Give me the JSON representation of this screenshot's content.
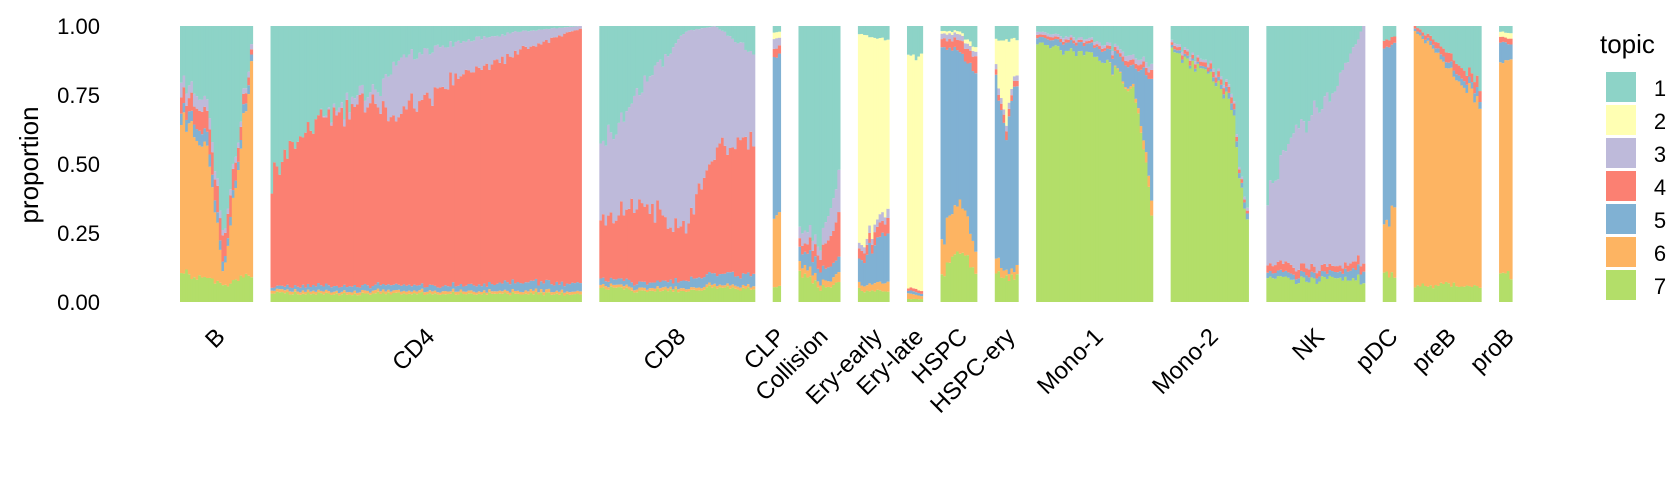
{
  "chart_data": {
    "type": "bar",
    "subtype": "stacked-proportion-structure-plot",
    "ylabel": "proportion",
    "xlabel": "",
    "ylim": [
      0,
      1
    ],
    "y_ticks": [
      "0.00",
      "0.25",
      "0.50",
      "0.75",
      "1.00"
    ],
    "grid": false,
    "legend": {
      "title": "topic",
      "placement": "right",
      "entries": [
        "1",
        "2",
        "3",
        "4",
        "5",
        "6",
        "7"
      ]
    },
    "topic_colors": {
      "1": "#8dd3c7",
      "2": "#ffffb3",
      "3": "#bebada",
      "4": "#fb8072",
      "5": "#80b1d3",
      "6": "#fdb462",
      "7": "#b3de69"
    },
    "stack_order": [
      "7",
      "6",
      "5",
      "4",
      "3",
      "2",
      "1"
    ],
    "groups": [
      {
        "name": "B",
        "n_samples": 28,
        "profile": [
          {
            "t": 0.0,
            "m": {
              "1": 0.2,
              "3": 0.05,
              "4": 0.05,
              "5": 0.04,
              "6": 0.56,
              "7": 0.1
            }
          },
          {
            "t": 0.4,
            "m": {
              "1": 0.3,
              "3": 0.04,
              "4": 0.08,
              "5": 0.05,
              "6": 0.45,
              "7": 0.08
            }
          },
          {
            "t": 0.6,
            "m": {
              "1": 0.75,
              "3": 0.02,
              "4": 0.1,
              "5": 0.03,
              "6": 0.04,
              "7": 0.06
            }
          },
          {
            "t": 1.0,
            "m": {
              "1": 0.08,
              "3": 0.02,
              "4": 0.02,
              "5": 0.03,
              "6": 0.75,
              "7": 0.1
            }
          }
        ]
      },
      {
        "name": "CD4",
        "n_samples": 120,
        "profile": [
          {
            "t": 0.0,
            "m": {
              "1": 0.55,
              "3": 0.0,
              "4": 0.4,
              "5": 0.01,
              "6": 0.01,
              "7": 0.03
            }
          },
          {
            "t": 0.15,
            "m": {
              "1": 0.33,
              "3": 0.0,
              "4": 0.61,
              "5": 0.02,
              "6": 0.01,
              "7": 0.03
            }
          },
          {
            "t": 0.35,
            "m": {
              "1": 0.22,
              "3": 0.05,
              "4": 0.67,
              "5": 0.02,
              "6": 0.01,
              "7": 0.03
            }
          },
          {
            "t": 0.4,
            "m": {
              "1": 0.12,
              "3": 0.2,
              "4": 0.62,
              "5": 0.02,
              "6": 0.01,
              "7": 0.03
            }
          },
          {
            "t": 0.6,
            "m": {
              "1": 0.06,
              "3": 0.13,
              "4": 0.75,
              "5": 0.02,
              "6": 0.01,
              "7": 0.03
            }
          },
          {
            "t": 0.8,
            "m": {
              "1": 0.02,
              "3": 0.07,
              "4": 0.84,
              "5": 0.03,
              "6": 0.01,
              "7": 0.03
            }
          },
          {
            "t": 1.0,
            "m": {
              "1": 0.0,
              "3": 0.01,
              "4": 0.92,
              "5": 0.03,
              "6": 0.01,
              "7": 0.03
            }
          }
        ]
      },
      {
        "name": "CD8",
        "n_samples": 60,
        "profile": [
          {
            "t": 0.0,
            "m": {
              "1": 0.45,
              "3": 0.25,
              "4": 0.22,
              "5": 0.02,
              "6": 0.01,
              "7": 0.05
            }
          },
          {
            "t": 0.3,
            "m": {
              "1": 0.2,
              "3": 0.45,
              "4": 0.28,
              "5": 0.02,
              "6": 0.01,
              "7": 0.04
            }
          },
          {
            "t": 0.55,
            "m": {
              "1": 0.02,
              "3": 0.72,
              "4": 0.18,
              "5": 0.03,
              "6": 0.01,
              "7": 0.04
            }
          },
          {
            "t": 0.75,
            "m": {
              "1": 0.0,
              "3": 0.45,
              "4": 0.45,
              "5": 0.04,
              "6": 0.01,
              "7": 0.05
            }
          },
          {
            "t": 1.0,
            "m": {
              "1": 0.1,
              "3": 0.3,
              "4": 0.5,
              "5": 0.04,
              "6": 0.01,
              "7": 0.05
            }
          }
        ]
      },
      {
        "name": "CLP",
        "n_samples": 3,
        "profile": [
          {
            "t": 0.0,
            "m": {
              "1": 0.02,
              "2": 0.02,
              "3": 0.03,
              "4": 0.03,
              "5": 0.6,
              "6": 0.25,
              "7": 0.05
            }
          },
          {
            "t": 1.0,
            "m": {
              "1": 0.02,
              "2": 0.02,
              "3": 0.03,
              "4": 0.03,
              "5": 0.6,
              "6": 0.25,
              "7": 0.05
            }
          }
        ]
      },
      {
        "name": "Collision",
        "n_samples": 16,
        "profile": [
          {
            "t": 0.0,
            "m": {
              "1": 0.7,
              "3": 0.05,
              "4": 0.03,
              "5": 0.06,
              "6": 0.04,
              "7": 0.12
            }
          },
          {
            "t": 0.5,
            "m": {
              "1": 0.8,
              "3": 0.03,
              "4": 0.05,
              "5": 0.05,
              "6": 0.02,
              "7": 0.05
            }
          },
          {
            "t": 1.0,
            "m": {
              "1": 0.55,
              "3": 0.15,
              "4": 0.15,
              "5": 0.05,
              "6": 0.03,
              "7": 0.07
            }
          }
        ]
      },
      {
        "name": "Ery-early",
        "n_samples": 12,
        "profile": [
          {
            "t": 0.0,
            "m": {
              "1": 0.03,
              "2": 0.78,
              "3": 0.02,
              "4": 0.03,
              "5": 0.08,
              "6": 0.02,
              "7": 0.04
            }
          },
          {
            "t": 1.0,
            "m": {
              "1": 0.05,
              "2": 0.62,
              "3": 0.03,
              "4": 0.05,
              "5": 0.18,
              "6": 0.03,
              "7": 0.04
            }
          }
        ]
      },
      {
        "name": "Ery-late",
        "n_samples": 6,
        "profile": [
          {
            "t": 0.0,
            "m": {
              "1": 0.1,
              "2": 0.85,
              "4": 0.01,
              "5": 0.01,
              "6": 0.02,
              "7": 0.01
            }
          },
          {
            "t": 1.0,
            "m": {
              "1": 0.1,
              "2": 0.86,
              "4": 0.01,
              "5": 0.01,
              "6": 0.01,
              "7": 0.01
            }
          }
        ]
      },
      {
        "name": "HSPC",
        "n_samples": 14,
        "profile": [
          {
            "t": 0.0,
            "m": {
              "1": 0.02,
              "2": 0.01,
              "3": 0.02,
              "4": 0.03,
              "5": 0.7,
              "6": 0.12,
              "7": 0.1
            }
          },
          {
            "t": 0.55,
            "m": {
              "1": 0.02,
              "2": 0.01,
              "3": 0.02,
              "4": 0.04,
              "5": 0.5,
              "6": 0.21,
              "7": 0.2
            }
          },
          {
            "t": 1.0,
            "m": {
              "1": 0.08,
              "2": 0.02,
              "3": 0.02,
              "4": 0.06,
              "5": 0.64,
              "6": 0.08,
              "7": 0.1
            }
          }
        ]
      },
      {
        "name": "HSPC-ery",
        "n_samples": 9,
        "profile": [
          {
            "t": 0.0,
            "m": {
              "1": 0.05,
              "2": 0.1,
              "3": 0.02,
              "4": 0.02,
              "5": 0.66,
              "6": 0.05,
              "7": 0.1
            }
          },
          {
            "t": 0.5,
            "m": {
              "1": 0.05,
              "2": 0.3,
              "3": 0.02,
              "4": 0.03,
              "5": 0.5,
              "6": 0.02,
              "7": 0.08
            }
          },
          {
            "t": 1.0,
            "m": {
              "1": 0.05,
              "2": 0.12,
              "3": 0.02,
              "4": 0.02,
              "5": 0.66,
              "6": 0.03,
              "7": 0.1
            }
          }
        ]
      },
      {
        "name": "Mono-1",
        "n_samples": 45,
        "profile": [
          {
            "t": 0.0,
            "m": {
              "1": 0.02,
              "3": 0.01,
              "4": 0.01,
              "5": 0.02,
              "6": 0.0,
              "7": 0.94
            }
          },
          {
            "t": 0.6,
            "m": {
              "1": 0.06,
              "3": 0.01,
              "4": 0.01,
              "5": 0.04,
              "6": 0.0,
              "7": 0.88
            }
          },
          {
            "t": 0.85,
            "m": {
              "1": 0.12,
              "3": 0.02,
              "4": 0.02,
              "5": 0.08,
              "6": 0.01,
              "7": 0.75
            }
          },
          {
            "t": 1.0,
            "m": {
              "1": 0.15,
              "3": 0.02,
              "4": 0.03,
              "5": 0.4,
              "6": 0.05,
              "7": 0.35
            }
          }
        ]
      },
      {
        "name": "Mono-2",
        "n_samples": 30,
        "profile": [
          {
            "t": 0.0,
            "m": {
              "1": 0.05,
              "3": 0.01,
              "4": 0.01,
              "5": 0.01,
              "7": 0.92
            }
          },
          {
            "t": 0.5,
            "m": {
              "1": 0.14,
              "3": 0.01,
              "4": 0.02,
              "5": 0.01,
              "7": 0.82
            }
          },
          {
            "t": 0.8,
            "m": {
              "1": 0.23,
              "3": 0.01,
              "4": 0.02,
              "5": 0.02,
              "7": 0.72
            }
          },
          {
            "t": 1.0,
            "m": {
              "1": 0.7,
              "3": 0.01,
              "4": 0.01,
              "5": 0.02,
              "7": 0.26
            }
          }
        ]
      },
      {
        "name": "NK",
        "n_samples": 38,
        "profile": [
          {
            "t": 0.0,
            "m": {
              "1": 0.6,
              "3": 0.25,
              "4": 0.03,
              "5": 0.02,
              "7": 0.1
            }
          },
          {
            "t": 0.3,
            "m": {
              "1": 0.37,
              "3": 0.5,
              "4": 0.03,
              "5": 0.02,
              "7": 0.08
            }
          },
          {
            "t": 0.7,
            "m": {
              "1": 0.22,
              "3": 0.66,
              "4": 0.02,
              "5": 0.02,
              "7": 0.08
            }
          },
          {
            "t": 1.0,
            "m": {
              "1": 0.0,
              "3": 0.85,
              "4": 0.03,
              "5": 0.04,
              "7": 0.08
            }
          }
        ]
      },
      {
        "name": "pDC",
        "n_samples": 5,
        "profile": [
          {
            "t": 0.0,
            "m": {
              "1": 0.05,
              "4": 0.03,
              "5": 0.64,
              "6": 0.18,
              "7": 0.1
            }
          },
          {
            "t": 1.0,
            "m": {
              "1": 0.04,
              "4": 0.02,
              "5": 0.6,
              "6": 0.24,
              "7": 0.1
            }
          }
        ]
      },
      {
        "name": "preB",
        "n_samples": 26,
        "profile": [
          {
            "t": 0.0,
            "m": {
              "1": 0.0,
              "4": 0.01,
              "5": 0.01,
              "6": 0.92,
              "7": 0.06
            }
          },
          {
            "t": 0.5,
            "m": {
              "1": 0.09,
              "4": 0.03,
              "5": 0.02,
              "6": 0.8,
              "7": 0.06
            }
          },
          {
            "t": 1.0,
            "m": {
              "1": 0.22,
              "4": 0.04,
              "5": 0.03,
              "6": 0.66,
              "7": 0.05
            }
          }
        ]
      },
      {
        "name": "proB",
        "n_samples": 5,
        "profile": [
          {
            "t": 0.0,
            "m": {
              "1": 0.02,
              "2": 0.02,
              "4": 0.02,
              "5": 0.08,
              "6": 0.76,
              "7": 0.1
            }
          },
          {
            "t": 1.0,
            "m": {
              "1": 0.03,
              "2": 0.02,
              "4": 0.02,
              "5": 0.06,
              "6": 0.77,
              "7": 0.1
            }
          }
        ]
      }
    ]
  }
}
